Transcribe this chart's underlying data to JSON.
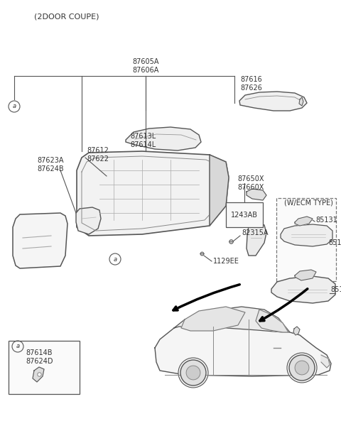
{
  "bg_color": "#ffffff",
  "text_color": "#333333",
  "line_color": "#555555",
  "title": "(2DOOR COUPE)",
  "figsize": [
    4.8,
    5.93
  ],
  "dpi": 100,
  "xlim": [
    0,
    480
  ],
  "ylim": [
    0,
    593
  ]
}
